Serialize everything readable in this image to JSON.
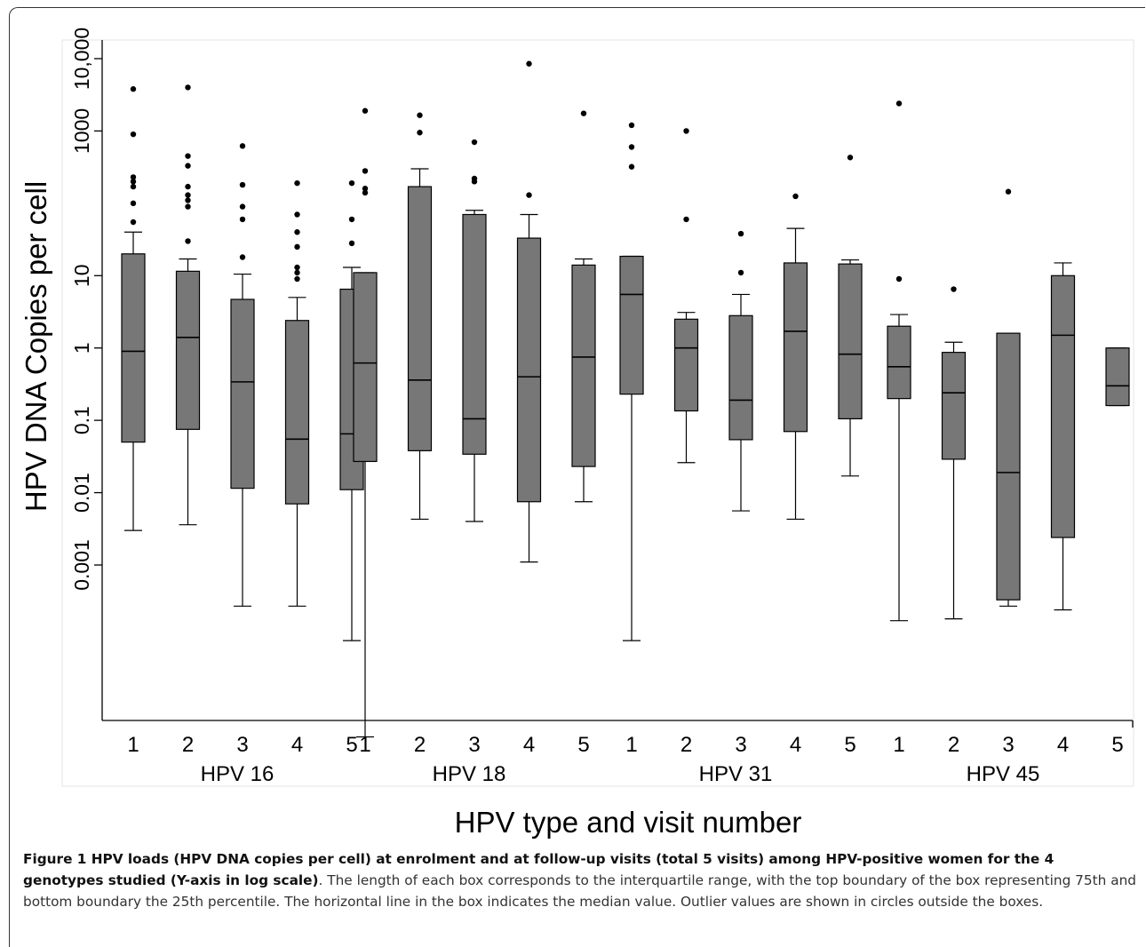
{
  "figure": {
    "caption_bold": "Figure 1 HPV loads (HPV DNA copies per cell) at enrolment and at follow-up visits (total 5 visits) among HPV-positive women for the 4 genotypes studied (Y-axis in log scale)",
    "caption_text": ". The length of each box corresponds to the interquartile range, with the top boundary of the box representing 75th and bottom boundary the 25th percentile. The horizontal line in the box indicates the median value. Outlier values are shown in circles outside the boxes."
  },
  "chart_data": {
    "type": "box",
    "ylabel": "HPV DNA Copies per cell",
    "xlabel": "HPV type and visit number",
    "yscale": "log",
    "ylim": [
      1e-05,
      50000
    ],
    "yticks": [
      {
        "value": 0.001,
        "label": "0.001"
      },
      {
        "value": 0.01,
        "label": "0.01"
      },
      {
        "value": 0.1,
        "label": "0.1"
      },
      {
        "value": 1,
        "label": "1"
      },
      {
        "value": 10,
        "label": "10"
      },
      {
        "value": 1000,
        "label": "1000"
      },
      {
        "value": 10000,
        "label": "10,000"
      }
    ],
    "box_color": "#777777",
    "groups": [
      {
        "name": "HPV 16",
        "boxes": [
          {
            "visit": "1",
            "whisker_low": 0.003,
            "q1": 0.05,
            "median": 0.9,
            "q3": 20,
            "whisker_high": 40,
            "outliers": [
              3800,
              900,
              230,
              200,
              170,
              100,
              55
            ]
          },
          {
            "visit": "2",
            "whisker_low": 0.0036,
            "q1": 0.075,
            "median": 1.4,
            "q3": 11.5,
            "whisker_high": 17,
            "outliers": [
              4000,
              450,
              330,
              170,
              130,
              110,
              90,
              30
            ]
          },
          {
            "visit": "3",
            "whisker_low": 0.00027,
            "q1": 0.0115,
            "median": 0.34,
            "q3": 4.7,
            "whisker_high": 10.5,
            "outliers": [
              620,
              180,
              90,
              60,
              18
            ]
          },
          {
            "visit": "4",
            "whisker_low": 0.00027,
            "q1": 0.007,
            "median": 0.055,
            "q3": 2.4,
            "whisker_high": 5,
            "outliers": [
              190,
              70,
              40,
              25,
              13,
              11,
              9
            ]
          },
          {
            "visit": "5",
            "whisker_low": 9e-05,
            "q1": 0.011,
            "median": 0.065,
            "q3": 6.5,
            "whisker_high": 13,
            "outliers": [
              190,
              60,
              28
            ]
          }
        ]
      },
      {
        "name": "HPV 18",
        "boxes": [
          {
            "visit": "1",
            "whisker_low": 4.2e-06,
            "q1": 0.027,
            "median": 0.62,
            "q3": 11,
            "whisker_high": 11,
            "outliers": [
              1900,
              280,
              160,
              140
            ]
          },
          {
            "visit": "2",
            "whisker_low": 0.0043,
            "q1": 0.038,
            "median": 0.36,
            "q3": 170,
            "whisker_high": 300,
            "outliers": [
              1650,
              950
            ]
          },
          {
            "visit": "3",
            "whisker_low": 0.004,
            "q1": 0.034,
            "median": 0.105,
            "q3": 70,
            "whisker_high": 80,
            "outliers": [
              700,
              220,
              200
            ]
          },
          {
            "visit": "4",
            "whisker_low": 0.0011,
            "q1": 0.0075,
            "median": 0.4,
            "q3": 33,
            "whisker_high": 70,
            "outliers": [
              8500,
              130
            ]
          },
          {
            "visit": "5",
            "whisker_low": 0.0075,
            "q1": 0.023,
            "median": 0.75,
            "q3": 14,
            "whisker_high": 17,
            "outliers": [
              1750
            ]
          }
        ]
      },
      {
        "name": "HPV 31",
        "boxes": [
          {
            "visit": "1",
            "whisker_low": 9e-05,
            "q1": 0.23,
            "median": 5.5,
            "q3": 18.5,
            "whisker_high": 18.5,
            "outliers": [
              1200,
              600,
              320
            ]
          },
          {
            "visit": "2",
            "whisker_low": 0.026,
            "q1": 0.135,
            "median": 1.0,
            "q3": 2.5,
            "whisker_high": 3.1,
            "outliers": [
              1000,
              60
            ]
          },
          {
            "visit": "3",
            "whisker_low": 0.0056,
            "q1": 0.054,
            "median": 0.19,
            "q3": 2.8,
            "whisker_high": 5.5,
            "outliers": [
              38,
              11
            ]
          },
          {
            "visit": "4",
            "whisker_low": 0.0043,
            "q1": 0.07,
            "median": 1.7,
            "q3": 15,
            "whisker_high": 45,
            "outliers": [
              125
            ]
          },
          {
            "visit": "5",
            "whisker_low": 0.017,
            "q1": 0.105,
            "median": 0.82,
            "q3": 14.5,
            "whisker_high": 16.5,
            "outliers": [
              430
            ]
          }
        ]
      },
      {
        "name": "HPV 45",
        "boxes": [
          {
            "visit": "1",
            "whisker_low": 0.00017,
            "q1": 0.2,
            "median": 0.55,
            "q3": 2,
            "whisker_high": 2.9,
            "outliers": [
              2400,
              9
            ]
          },
          {
            "visit": "2",
            "whisker_low": 0.00018,
            "q1": 0.029,
            "median": 0.24,
            "q3": 0.87,
            "whisker_high": 1.2,
            "outliers": [
              6.5
            ]
          },
          {
            "visit": "3",
            "whisker_low": 0.00027,
            "q1": 0.00033,
            "median": 0.019,
            "q3": 1.6,
            "whisker_high": 1.6,
            "outliers": [
              145
            ]
          },
          {
            "visit": "4",
            "whisker_low": 0.00024,
            "q1": 0.0024,
            "median": 1.5,
            "q3": 10,
            "whisker_high": 15,
            "outliers": []
          },
          {
            "visit": "5",
            "whisker_low": 0.16,
            "q1": 0.16,
            "median": 0.3,
            "q3": 1.0,
            "whisker_high": 1.0,
            "outliers": []
          }
        ]
      }
    ]
  }
}
